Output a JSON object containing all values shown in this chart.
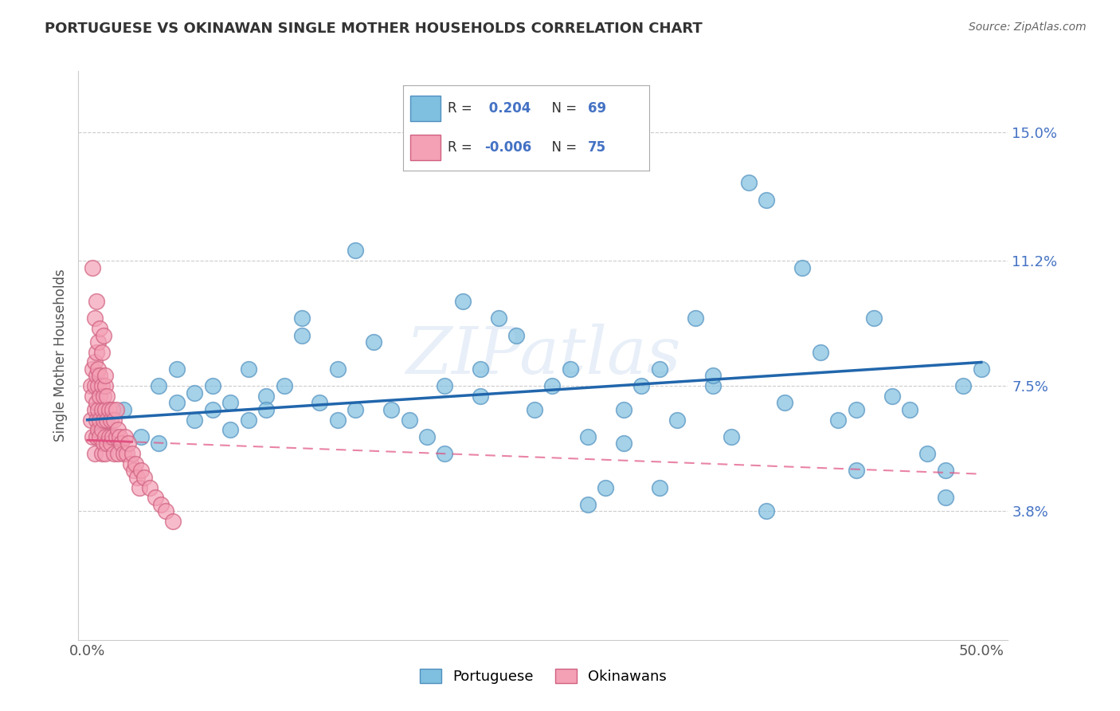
{
  "title": "PORTUGUESE VS OKINAWAN SINGLE MOTHER HOUSEHOLDS CORRELATION CHART",
  "source": "Source: ZipAtlas.com",
  "ylabel": "Single Mother Households",
  "ytick_labels": [
    "3.8%",
    "7.5%",
    "11.2%",
    "15.0%"
  ],
  "ytick_values": [
    0.038,
    0.075,
    0.112,
    0.15
  ],
  "xtick_labels": [
    "0.0%",
    "50.0%"
  ],
  "xtick_values": [
    0.0,
    0.5
  ],
  "xlim": [
    -0.005,
    0.515
  ],
  "ylim": [
    0.0,
    0.168
  ],
  "portuguese_R": "0.204",
  "portuguese_N": "69",
  "okinawan_R": "-0.006",
  "okinawan_N": "75",
  "portuguese_color": "#7fbfdf",
  "okinawan_color": "#f4a0b5",
  "portuguese_line_color": "#2166ac",
  "okinawan_line_color": "#e05080",
  "watermark": "ZIPatlas",
  "background_color": "#ffffff",
  "grid_color": "#cccccc",
  "portuguese_x": [
    0.01,
    0.02,
    0.03,
    0.04,
    0.04,
    0.05,
    0.05,
    0.06,
    0.06,
    0.07,
    0.07,
    0.08,
    0.09,
    0.09,
    0.1,
    0.1,
    0.11,
    0.12,
    0.13,
    0.14,
    0.14,
    0.15,
    0.16,
    0.17,
    0.18,
    0.19,
    0.2,
    0.21,
    0.22,
    0.23,
    0.24,
    0.25,
    0.26,
    0.27,
    0.28,
    0.29,
    0.3,
    0.31,
    0.32,
    0.33,
    0.34,
    0.35,
    0.36,
    0.37,
    0.38,
    0.39,
    0.4,
    0.41,
    0.42,
    0.43,
    0.44,
    0.45,
    0.46,
    0.47,
    0.48,
    0.49,
    0.5,
    0.12,
    0.2,
    0.28,
    0.32,
    0.38,
    0.43,
    0.48,
    0.08,
    0.15,
    0.22,
    0.3,
    0.35
  ],
  "portuguese_y": [
    0.065,
    0.068,
    0.06,
    0.075,
    0.058,
    0.07,
    0.08,
    0.065,
    0.073,
    0.068,
    0.075,
    0.07,
    0.08,
    0.065,
    0.072,
    0.068,
    0.075,
    0.09,
    0.07,
    0.065,
    0.08,
    0.115,
    0.088,
    0.068,
    0.065,
    0.06,
    0.075,
    0.1,
    0.08,
    0.095,
    0.09,
    0.068,
    0.075,
    0.08,
    0.06,
    0.045,
    0.068,
    0.075,
    0.08,
    0.065,
    0.095,
    0.075,
    0.06,
    0.135,
    0.13,
    0.07,
    0.11,
    0.085,
    0.065,
    0.068,
    0.095,
    0.072,
    0.068,
    0.055,
    0.05,
    0.075,
    0.08,
    0.095,
    0.055,
    0.04,
    0.045,
    0.038,
    0.05,
    0.042,
    0.062,
    0.068,
    0.072,
    0.058,
    0.078
  ],
  "okinawan_x": [
    0.002,
    0.002,
    0.003,
    0.003,
    0.003,
    0.004,
    0.004,
    0.004,
    0.004,
    0.005,
    0.005,
    0.005,
    0.005,
    0.005,
    0.006,
    0.006,
    0.006,
    0.006,
    0.007,
    0.007,
    0.007,
    0.007,
    0.008,
    0.008,
    0.008,
    0.008,
    0.009,
    0.009,
    0.009,
    0.01,
    0.01,
    0.01,
    0.01,
    0.011,
    0.011,
    0.011,
    0.012,
    0.012,
    0.013,
    0.013,
    0.014,
    0.014,
    0.015,
    0.015,
    0.016,
    0.016,
    0.017,
    0.017,
    0.018,
    0.019,
    0.02,
    0.021,
    0.022,
    0.023,
    0.024,
    0.025,
    0.026,
    0.027,
    0.028,
    0.029,
    0.03,
    0.032,
    0.035,
    0.038,
    0.041,
    0.044,
    0.048,
    0.003,
    0.004,
    0.005,
    0.006,
    0.007,
    0.008,
    0.009,
    0.01
  ],
  "okinawan_y": [
    0.065,
    0.075,
    0.06,
    0.072,
    0.08,
    0.055,
    0.068,
    0.075,
    0.082,
    0.06,
    0.065,
    0.07,
    0.078,
    0.085,
    0.062,
    0.068,
    0.075,
    0.08,
    0.06,
    0.065,
    0.072,
    0.078,
    0.055,
    0.062,
    0.068,
    0.075,
    0.058,
    0.065,
    0.072,
    0.055,
    0.06,
    0.068,
    0.075,
    0.058,
    0.065,
    0.072,
    0.06,
    0.068,
    0.058,
    0.065,
    0.06,
    0.068,
    0.055,
    0.065,
    0.06,
    0.068,
    0.055,
    0.062,
    0.06,
    0.058,
    0.055,
    0.06,
    0.055,
    0.058,
    0.052,
    0.055,
    0.05,
    0.052,
    0.048,
    0.045,
    0.05,
    0.048,
    0.045,
    0.042,
    0.04,
    0.038,
    0.035,
    0.11,
    0.095,
    0.1,
    0.088,
    0.092,
    0.085,
    0.09,
    0.078
  ]
}
